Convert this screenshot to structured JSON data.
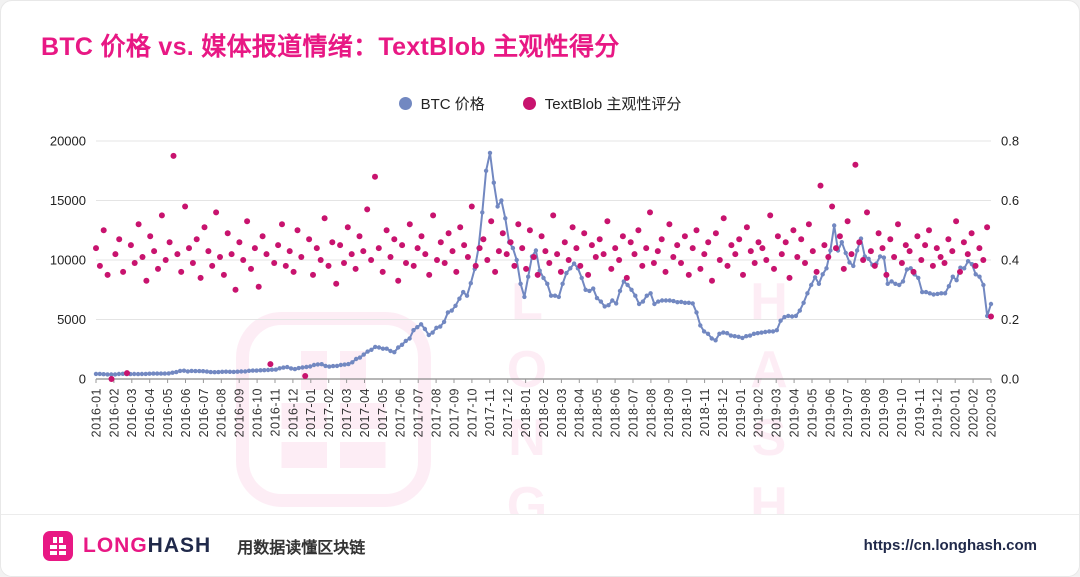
{
  "header": {
    "title": "BTC 价格 vs. 媒体报道情绪：TextBlob 主观性得分"
  },
  "legend": [
    {
      "label": "BTC 价格",
      "color": "#7288c1"
    },
    {
      "label": "TextBlob 主观性评分",
      "color": "#c8136e"
    }
  ],
  "watermark": {
    "word1": "LONG",
    "word2": "HASH"
  },
  "footer": {
    "brand_long": "LONG",
    "brand_hash": "HASH",
    "tagline": "用数据读懂区块链",
    "url": "https://cn.longhash.com"
  },
  "colors": {
    "accent": "#e81884",
    "btc": "#7288c1",
    "sentiment": "#c8136e",
    "axis_text": "#222222",
    "grid": "#e4e4e4",
    "baseline": "#8a8a8a",
    "footer_text": "#20294a"
  },
  "chart_data": {
    "type": "scatter",
    "title": "BTC 价格 vs. 媒体报道情绪：TextBlob 主观性得分",
    "legend_position": "top",
    "grid": "horizontal",
    "x_tick_labels": [
      "2016-01",
      "2016-02",
      "2016-03",
      "2016-04",
      "2016-05",
      "2016-06",
      "2016-07",
      "2016-08",
      "2016-09",
      "2016-10",
      "2016-11",
      "2016-12",
      "2017-01",
      "2017-02",
      "2017-03",
      "2017-04",
      "2017-05",
      "2017-06",
      "2017-07",
      "2017-08",
      "2017-09",
      "2017-10",
      "2017-11",
      "2017-12",
      "2018-01",
      "2018-02",
      "2018-03",
      "2018-04",
      "2018-05",
      "2018-06",
      "2018-07",
      "2018-08",
      "2018-09",
      "2018-10",
      "2018-11",
      "2018-12",
      "2019-01",
      "2019-02",
      "2019-03",
      "2019-04",
      "2019-05",
      "2019-06",
      "2019-07",
      "2019-08",
      "2019-09",
      "2019-10",
      "2019-11",
      "2019-12",
      "2020-01",
      "2020-02",
      "2020-03"
    ],
    "left_axis": {
      "range": [
        0,
        20000
      ],
      "ticks": [
        0,
        5000,
        10000,
        15000,
        20000
      ],
      "tick_labels": [
        "0",
        "5000",
        "10000",
        "15000",
        "20000"
      ]
    },
    "right_axis": {
      "range": [
        0,
        0.8
      ],
      "ticks": [
        0,
        0.2,
        0.4,
        0.6,
        0.8
      ],
      "tick_labels": [
        "0.0",
        "0.2",
        "0.4",
        "0.6",
        "0.8"
      ]
    },
    "series": [
      {
        "id": "btc-series",
        "name": "BTC 价格",
        "axis": "left",
        "style": "line+dots",
        "color": "#7288c1",
        "values": [
          430,
          430,
          400,
          390,
          380,
          390,
          420,
          435,
          410,
          415,
          420,
          415,
          420,
          430,
          445,
          450,
          450,
          455,
          450,
          470,
          530,
          580,
          680,
          700,
          640,
          680,
          660,
          660,
          655,
          620,
          580,
          575,
          580,
          605,
          610,
          605,
          600,
          615,
          630,
          640,
          690,
          710,
          710,
          730,
          740,
          760,
          780,
          790,
          900,
          960,
          1000,
          890,
          830,
          920,
          970,
          1010,
          1050,
          1180,
          1230,
          1240,
          1100,
          1040,
          1080,
          1100,
          1180,
          1210,
          1250,
          1400,
          1680,
          1800,
          2050,
          2300,
          2450,
          2700,
          2650,
          2550,
          2550,
          2350,
          2250,
          2650,
          2870,
          3200,
          3400,
          4100,
          4350,
          4600,
          4200,
          3700,
          3900,
          4300,
          4400,
          4800,
          5600,
          5750,
          6150,
          6750,
          7300,
          7000,
          8050,
          9250,
          11000,
          14000,
          17500,
          19000,
          16500,
          14500,
          15000,
          13500,
          11500,
          11000,
          10000,
          8000,
          6900,
          8600,
          10300,
          10800,
          9100,
          8500,
          8000,
          7000,
          7000,
          6900,
          8000,
          8900,
          9300,
          9700,
          9300,
          8500,
          7500,
          7400,
          7600,
          6800,
          6500,
          6100,
          6200,
          6600,
          6350,
          7400,
          8200,
          7900,
          7500,
          7000,
          6300,
          6500,
          7000,
          7200,
          6300,
          6500,
          6600,
          6600,
          6600,
          6550,
          6450,
          6480,
          6400,
          6400,
          6350,
          5600,
          4500,
          4000,
          3800,
          3400,
          3250,
          3800,
          3900,
          3850,
          3650,
          3600,
          3550,
          3450,
          3600,
          3650,
          3800,
          3850,
          3900,
          3950,
          4000,
          4000,
          4100,
          4900,
          5200,
          5300,
          5250,
          5300,
          5750,
          6400,
          7200,
          7900,
          8550,
          8000,
          8800,
          9300,
          10800,
          12900,
          10800,
          11500,
          10600,
          9800,
          9500,
          10800,
          11800,
          10300,
          10100,
          9600,
          9700,
          10300,
          10200,
          8000,
          8200,
          8000,
          7900,
          8200,
          9200,
          9300,
          8800,
          8500,
          7300,
          7300,
          7200,
          7100,
          7150,
          7200,
          7200,
          7800,
          8600,
          8300,
          9350,
          9300,
          9900,
          9650,
          8800,
          8600,
          7900,
          5300,
          6300
        ]
      },
      {
        "id": "sentiment-series",
        "name": "TextBlob 主观性评分",
        "axis": "right",
        "style": "dots",
        "color": "#c8136e",
        "values": [
          0.44,
          0.38,
          0.5,
          0.35,
          0.0,
          0.42,
          0.47,
          0.36,
          0.02,
          0.45,
          0.39,
          0.52,
          0.41,
          0.33,
          0.48,
          0.43,
          0.37,
          0.55,
          0.4,
          0.46,
          0.75,
          0.42,
          0.36,
          0.58,
          0.44,
          0.39,
          0.47,
          0.34,
          0.51,
          0.43,
          0.38,
          0.56,
          0.41,
          0.35,
          0.49,
          0.42,
          0.3,
          0.46,
          0.4,
          0.53,
          0.37,
          0.44,
          0.31,
          0.48,
          0.42,
          0.05,
          0.39,
          0.45,
          0.52,
          0.38,
          0.43,
          0.36,
          0.5,
          0.41,
          0.01,
          0.47,
          0.35,
          0.44,
          0.4,
          0.54,
          0.38,
          0.46,
          0.32,
          0.45,
          0.39,
          0.51,
          0.42,
          0.37,
          0.48,
          0.43,
          0.57,
          0.4,
          0.68,
          0.44,
          0.36,
          0.5,
          0.41,
          0.47,
          0.33,
          0.45,
          0.39,
          0.52,
          0.38,
          0.44,
          0.48,
          0.42,
          0.35,
          0.55,
          0.4,
          0.46,
          0.39,
          0.49,
          0.43,
          0.36,
          0.51,
          0.45,
          0.41,
          0.58,
          0.38,
          0.44,
          0.47,
          0.4,
          0.53,
          0.36,
          0.43,
          0.49,
          0.42,
          0.46,
          0.38,
          0.52,
          0.44,
          0.37,
          0.5,
          0.41,
          0.35,
          0.48,
          0.43,
          0.39,
          0.55,
          0.42,
          0.36,
          0.46,
          0.4,
          0.51,
          0.44,
          0.38,
          0.49,
          0.35,
          0.45,
          0.41,
          0.47,
          0.42,
          0.53,
          0.37,
          0.44,
          0.4,
          0.48,
          0.34,
          0.46,
          0.42,
          0.5,
          0.38,
          0.44,
          0.56,
          0.39,
          0.43,
          0.47,
          0.36,
          0.52,
          0.41,
          0.45,
          0.39,
          0.48,
          0.35,
          0.44,
          0.5,
          0.37,
          0.42,
          0.46,
          0.33,
          0.49,
          0.4,
          0.54,
          0.38,
          0.45,
          0.42,
          0.47,
          0.35,
          0.51,
          0.43,
          0.39,
          0.46,
          0.44,
          0.4,
          0.55,
          0.37,
          0.48,
          0.42,
          0.46,
          0.34,
          0.5,
          0.41,
          0.47,
          0.39,
          0.52,
          0.43,
          0.36,
          0.65,
          0.45,
          0.41,
          0.58,
          0.44,
          0.48,
          0.37,
          0.53,
          0.42,
          0.72,
          0.46,
          0.4,
          0.56,
          0.43,
          0.38,
          0.49,
          0.44,
          0.35,
          0.47,
          0.41,
          0.52,
          0.39,
          0.45,
          0.43,
          0.36,
          0.48,
          0.4,
          0.45,
          0.5,
          0.38,
          0.44,
          0.41,
          0.39,
          0.47,
          0.43,
          0.53,
          0.36,
          0.46,
          0.42,
          0.49,
          0.38,
          0.44,
          0.4,
          0.51,
          0.21
        ]
      }
    ]
  }
}
